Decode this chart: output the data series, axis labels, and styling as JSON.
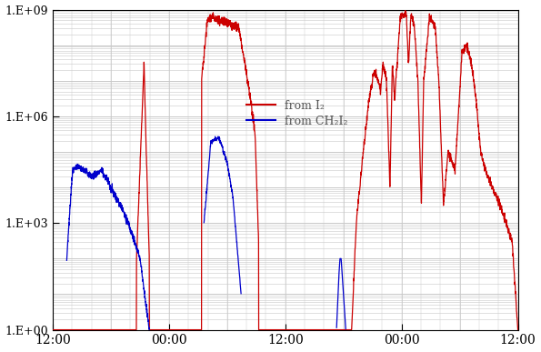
{
  "ylim_log_min": 1.0,
  "ylim_log_max": 1000000000.0,
  "xtick_labels": [
    "12:00",
    "00:00",
    "12:00",
    "00:00",
    "12:00"
  ],
  "red_color": "#cc0000",
  "blue_color": "#0000cc",
  "background_color": "#ffffff",
  "grid_color": "#c8c8c8",
  "legend_label_red": "from I₂",
  "legend_label_blue": "from CH₂I₂"
}
